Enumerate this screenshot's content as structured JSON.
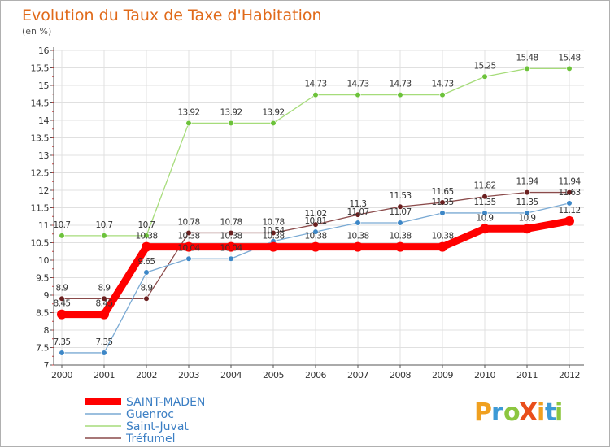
{
  "chart_data": {
    "type": "line",
    "title": "Evolution du Taux de Taxe d'Habitation",
    "subtitle": "(en %)",
    "x": [
      "2000",
      "2001",
      "2002",
      "2003",
      "2004",
      "2005",
      "2006",
      "2007",
      "2008",
      "2009",
      "2010",
      "2011",
      "2012"
    ],
    "ylim": [
      7,
      16
    ],
    "yticks": [
      7,
      7.5,
      8,
      8.5,
      9,
      9.5,
      10,
      10.5,
      11,
      11.5,
      12,
      12.5,
      13,
      13.5,
      14,
      14.5,
      15,
      15.5,
      16
    ],
    "grid": true,
    "legend_position": "bottom-left",
    "series": [
      {
        "name": "SAINT-MADEN",
        "color": "#ff0000",
        "values": [
          8.45,
          8.45,
          10.38,
          10.38,
          10.38,
          10.38,
          10.38,
          10.38,
          10.38,
          10.38,
          10.9,
          10.9,
          11.12
        ],
        "labels": [
          "8.45",
          "8.45",
          "10.38",
          "10.38",
          "10.38",
          "10.38",
          "10.38",
          "10.38",
          "10.38",
          "10.38",
          "10.9",
          "10.9",
          "11.12"
        ]
      },
      {
        "name": "Guenroc",
        "color": "#7aaad4",
        "marker_color": "#3d87c7",
        "values": [
          7.35,
          7.35,
          9.65,
          10.04,
          10.04,
          10.54,
          10.81,
          11.07,
          11.07,
          11.35,
          11.35,
          11.35,
          11.63
        ],
        "labels": [
          "7.35",
          "7.35",
          "9.65",
          "10.04",
          "10.04",
          "10.54",
          "10.81",
          "11.07",
          "11.07",
          "11.35",
          "11.35",
          "11.35",
          "11.63"
        ]
      },
      {
        "name": "Saint-Juvat",
        "color": "#a6dc7a",
        "marker_color": "#6cc23a",
        "values": [
          10.7,
          10.7,
          10.7,
          13.92,
          13.92,
          13.92,
          14.73,
          14.73,
          14.73,
          14.73,
          15.25,
          15.48,
          15.48
        ],
        "labels": [
          "10.7",
          "10.7",
          "10.7",
          "13.92",
          "13.92",
          "13.92",
          "14.73",
          "14.73",
          "14.73",
          "14.73",
          "15.25",
          "15.48",
          "15.48"
        ]
      },
      {
        "name": "Tréfumel",
        "color": "#8a4a4a",
        "marker_color": "#6a1f1f",
        "values": [
          8.9,
          8.9,
          8.9,
          10.78,
          10.78,
          10.78,
          11.02,
          11.3,
          11.53,
          11.65,
          11.82,
          11.94,
          11.94
        ],
        "labels": [
          "8.9",
          "8.9",
          "8.9",
          "10.78",
          "10.78",
          "10.78",
          "11.02",
          "11.3",
          "11.53",
          "11.65",
          "11.82",
          "11.94",
          "11.94"
        ]
      }
    ]
  },
  "logo": {
    "text": "ProXiti",
    "letters": [
      "P",
      "r",
      "o",
      "X",
      "i",
      "t",
      "i"
    ],
    "letter_colors": [
      "#f0a020",
      "#3d9ad6",
      "#8cc63f",
      "#e94e1b",
      "#f0a020",
      "#3d9ad6",
      "#8cc63f"
    ]
  }
}
